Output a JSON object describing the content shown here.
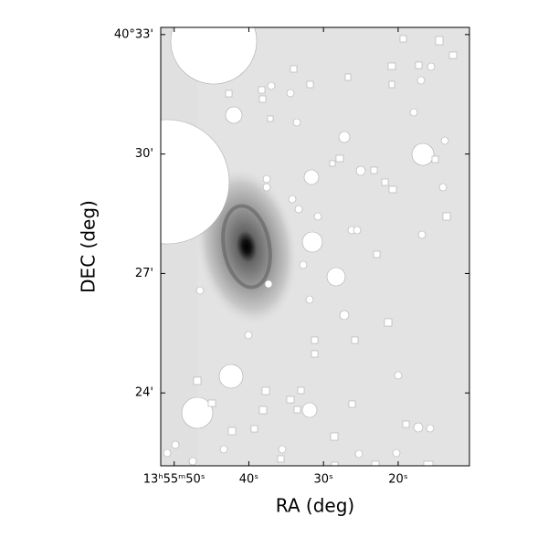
{
  "chart_data": {
    "type": "image",
    "xlabel": "RA (deg)",
    "ylabel": "DEC (deg)",
    "xlim": [
      51.8,
      10.45
    ],
    "xticks": [
      {
        "value": 50,
        "label": "13ʰ55ᵐ50ˢ"
      },
      {
        "value": 40,
        "label": "40ˢ"
      },
      {
        "value": 30,
        "label": "30ˢ"
      },
      {
        "value": 20,
        "label": "20ˢ"
      }
    ],
    "ylim": [
      22.17,
      33.18
    ],
    "yticks": [
      {
        "value": 33,
        "label": "40°33'"
      },
      {
        "value": 30,
        "label": "30'"
      },
      {
        "value": 27,
        "label": "27'"
      },
      {
        "value": 24,
        "label": "24'"
      }
    ],
    "colormap": "gray_r"
  }
}
